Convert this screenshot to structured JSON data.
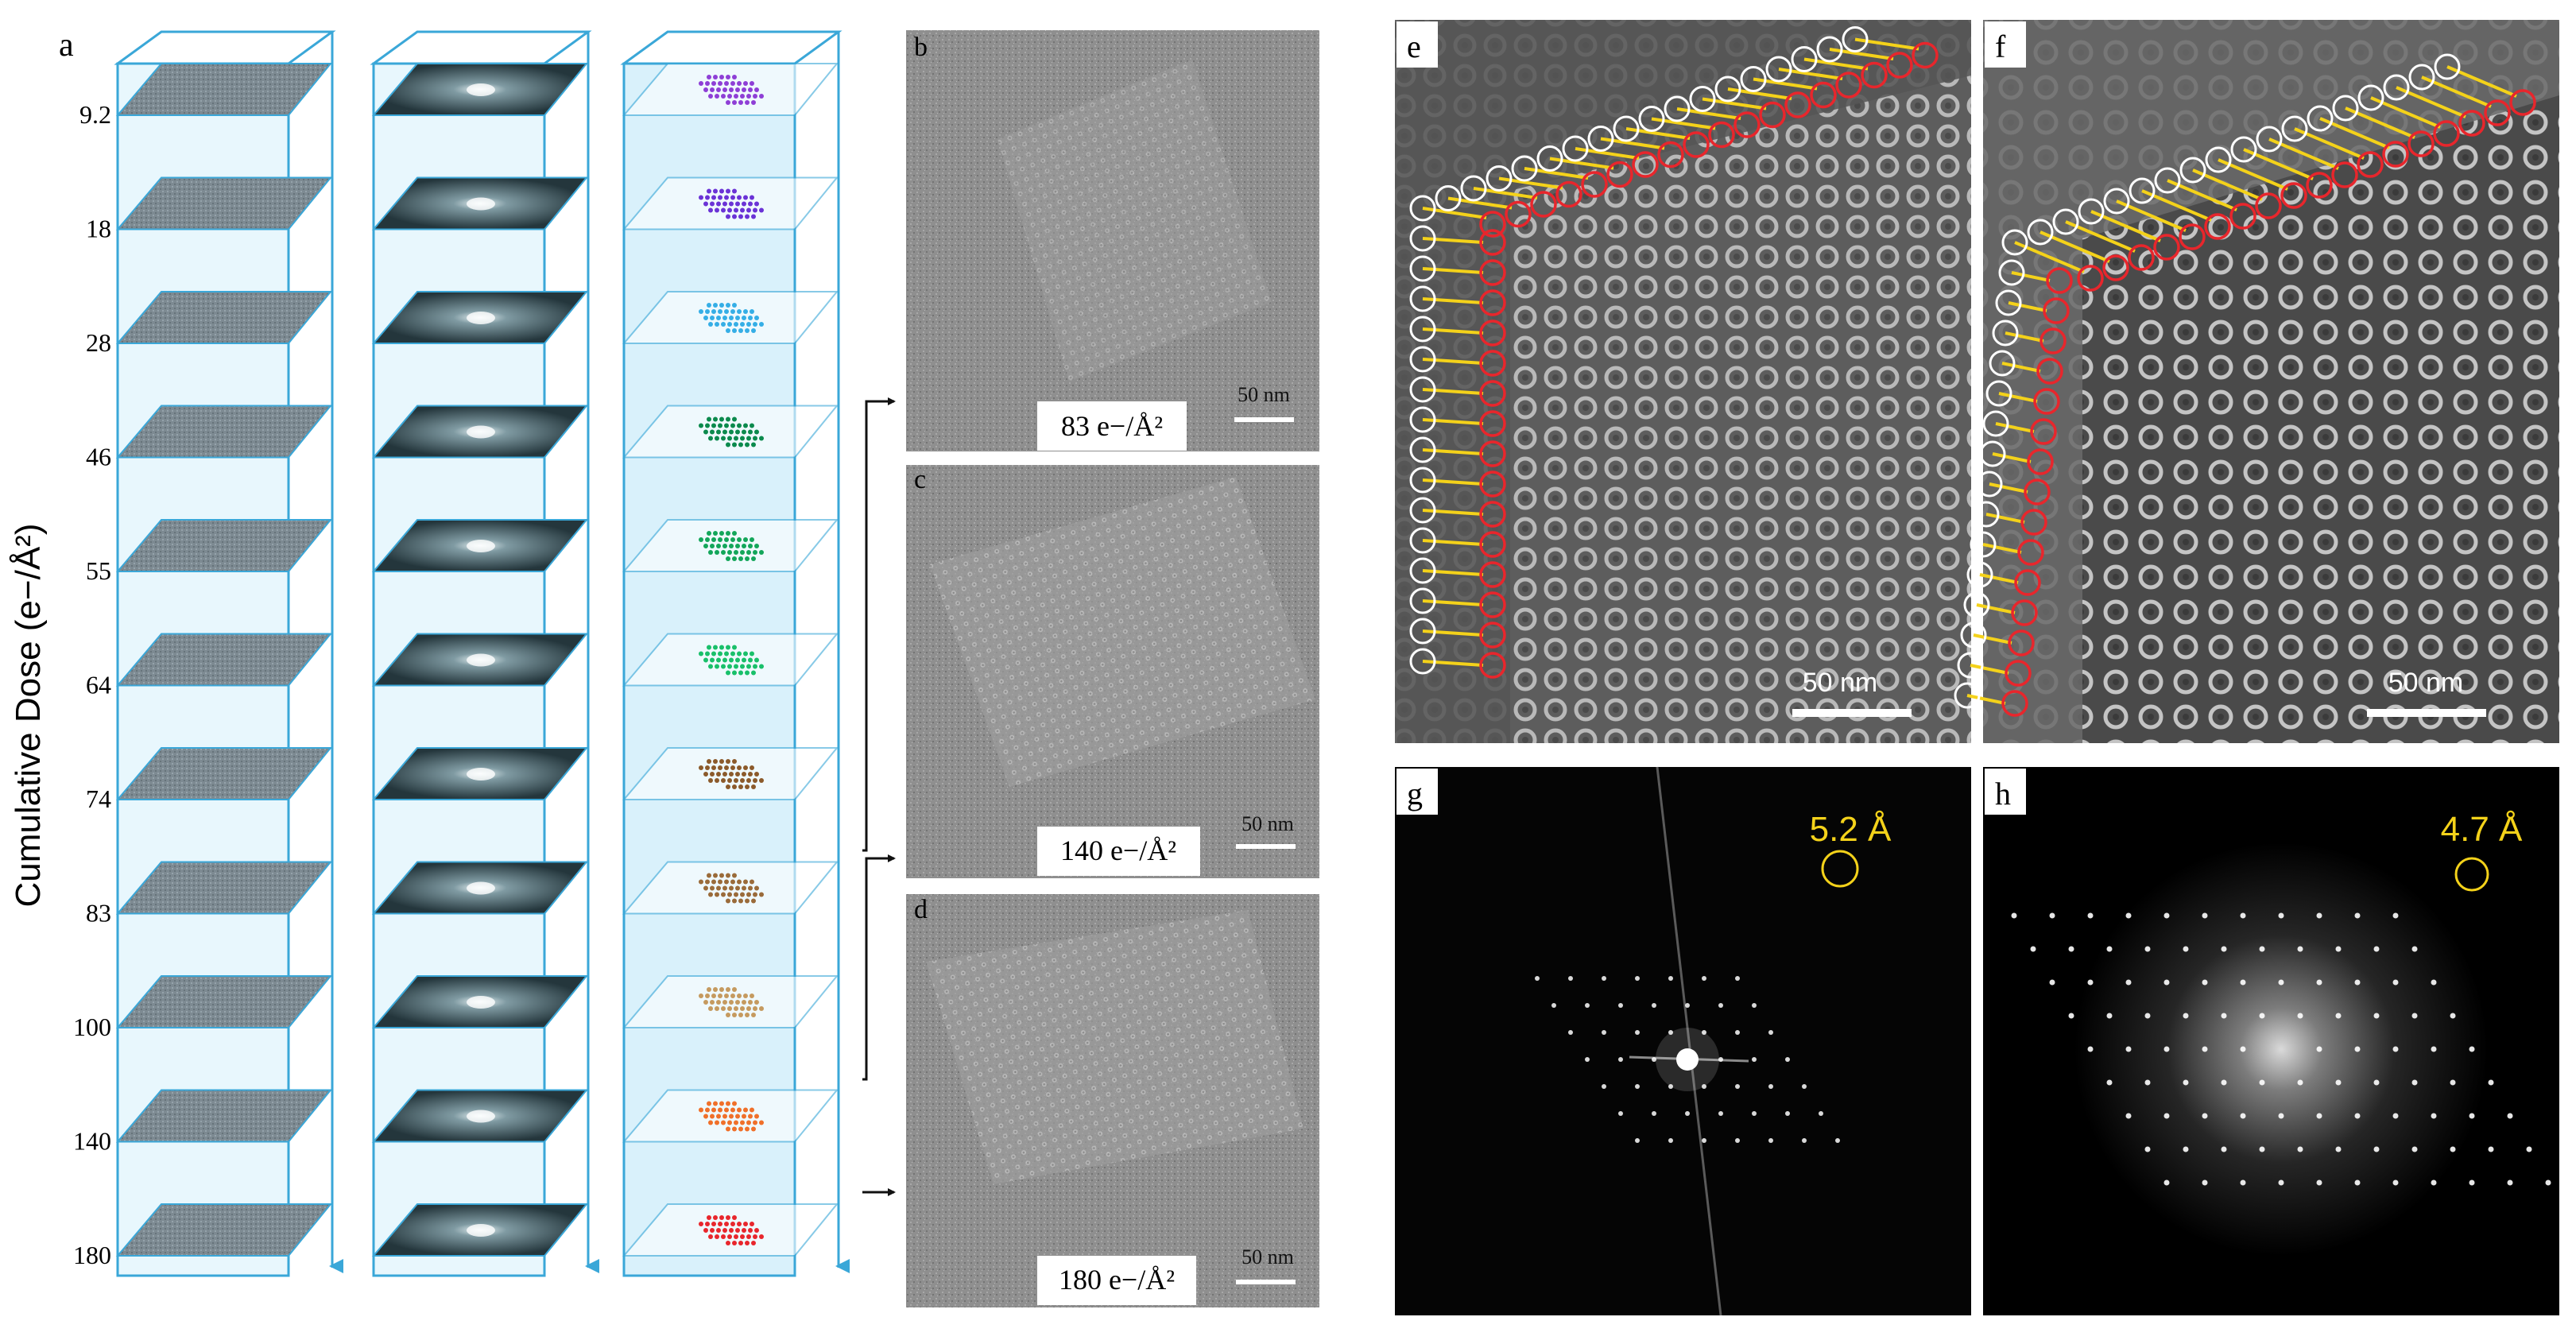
{
  "figure": {
    "panel_labels": [
      "a",
      "b",
      "c",
      "d",
      "e",
      "f",
      "g",
      "h"
    ],
    "y_axis_label": "Cumulative Dose (e−/Å²)",
    "dose_ticks": [
      "9.2",
      "18",
      "28",
      "46",
      "55",
      "64",
      "74",
      "83",
      "100",
      "140",
      "180"
    ],
    "slice_colors": [
      "#8e3fd6",
      "#6a33d6",
      "#35aee6",
      "#0b8a4d",
      "#13a65a",
      "#19c06a",
      "#8b5a2b",
      "#9a6b3a",
      "#c59a5f",
      "#f0702a",
      "#e8262c"
    ],
    "panel_b": {
      "dose": "83 e−/Å²",
      "scale": "50 nm"
    },
    "panel_c": {
      "dose": "140 e−/Å²",
      "scale": "50 nm"
    },
    "panel_d": {
      "dose": "180 e−/Å²",
      "scale": "50 nm"
    },
    "panel_e": {
      "scale": "50 nm"
    },
    "panel_f": {
      "scale": "50 nm"
    },
    "panel_g": {
      "resolution": "5.2 Å"
    },
    "panel_h": {
      "resolution": "4.7 Å"
    },
    "colors": {
      "frame_blue": "#3aa7d8",
      "box_fill": "#d9f1fb",
      "highlight_yellow": "#f4d21a",
      "circle_red": "#e8262c",
      "circle_white": "#ffffff"
    }
  }
}
